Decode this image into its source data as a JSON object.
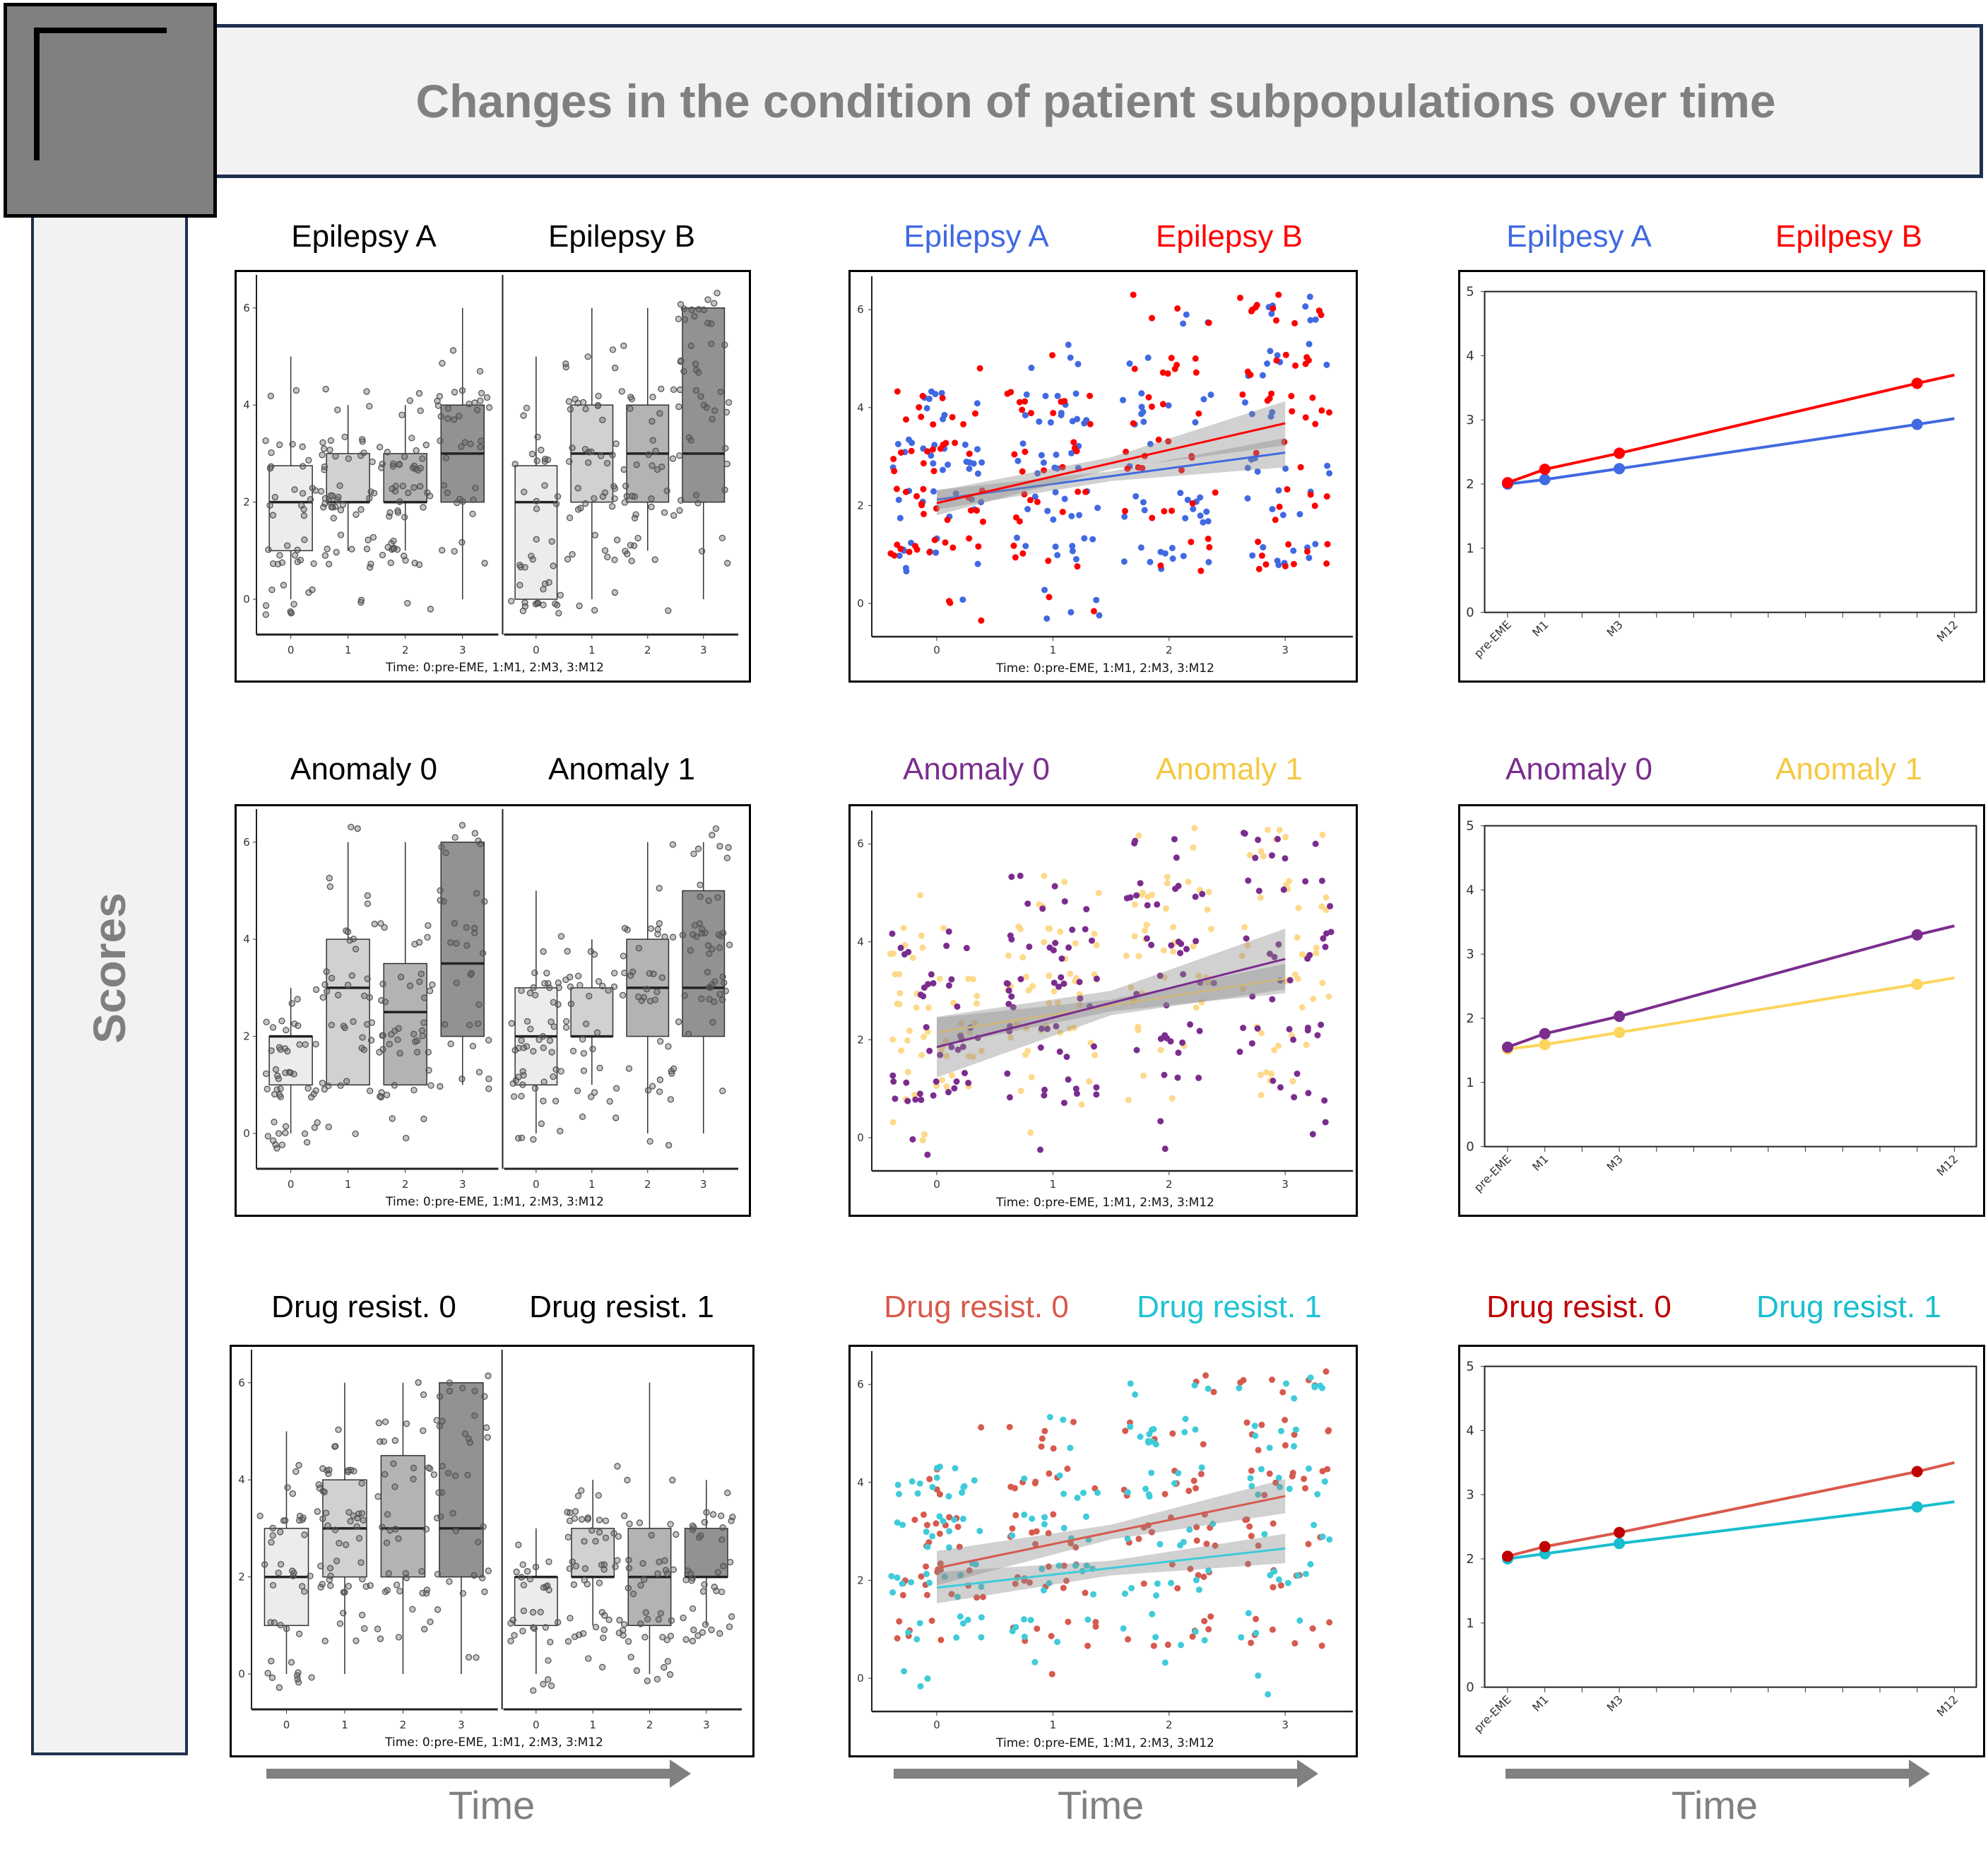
{
  "header": {
    "title": "Changes in the condition of patient subpopulations over time"
  },
  "side_label": "Scores",
  "time_labels": [
    "Time",
    "Time",
    "Time"
  ],
  "colors": {
    "box_fills": [
      "#ececec",
      "#d1d1d1",
      "#b3b3b3",
      "#929292"
    ],
    "title_bar_border": "#1f3050"
  },
  "chart_data": [
    {
      "type": "box",
      "titles": [
        "Epilepsy A",
        "Epilepsy B"
      ],
      "title_colors": [
        "#000000",
        "#000000"
      ],
      "xlabel": "Time: 0:pre-EME, 1:M1, 2:M3, 3:M12",
      "categories": [
        "0",
        "1",
        "2",
        "3"
      ],
      "yticks": [
        0,
        2,
        4,
        6
      ],
      "panels": [
        {
          "name": "Epilepsy A",
          "boxes": [
            [
              0,
              1,
              2,
              2.75,
              5
            ],
            [
              1,
              2,
              2,
              3,
              4
            ],
            [
              1,
              2,
              2,
              3,
              4
            ],
            [
              0,
              2,
              3,
              4,
              6
            ]
          ]
        },
        {
          "name": "Epilepsy B",
          "boxes": [
            [
              0,
              0,
              2,
              2.75,
              5
            ],
            [
              0,
              2,
              3,
              4,
              6
            ],
            [
              1,
              2,
              3,
              4,
              6
            ],
            [
              0,
              2,
              3,
              6,
              6
            ]
          ]
        }
      ]
    },
    {
      "type": "scatter",
      "titles": [
        "Epilepsy A",
        "Epilepsy B"
      ],
      "title_colors": [
        "#4169e1",
        "#ff0000"
      ],
      "xlabel": "Time: 0:pre-EME, 1:M1, 2:M3, 3:M12",
      "xticks": [
        0,
        1,
        2,
        3
      ],
      "yticks": [
        0,
        2,
        4,
        6
      ],
      "series": [
        {
          "name": "Epilepsy A",
          "color": "#4169e1",
          "fit": [
            2.12,
            3.08
          ],
          "ci_halfwidth": [
            0.2,
            0.1,
            0.3
          ]
        },
        {
          "name": "Epilepsy B",
          "color": "#ff0000",
          "fit": [
            2.05,
            3.68
          ],
          "ci_halfwidth": [
            0.25,
            0.12,
            0.45
          ]
        }
      ]
    },
    {
      "type": "line",
      "titles": [
        "Epilpesy A",
        "Epilpesy B"
      ],
      "title_colors": [
        "#4169e1",
        "#ff0000"
      ],
      "xtick_labels": [
        {
          "x": 0,
          "label": "pre-EME"
        },
        {
          "x": 1,
          "label": "M1"
        },
        {
          "x": 3,
          "label": "M3"
        },
        {
          "x": 12,
          "label": "M12"
        }
      ],
      "ylim": [
        0,
        5
      ],
      "yticks": [
        0,
        1,
        2,
        3,
        4,
        5
      ],
      "x": [
        0,
        1,
        3,
        11
      ],
      "series": [
        {
          "name": "Epilpesy A",
          "color": "#4169e1",
          "marker_color": "#4169e1",
          "values": [
            2.0,
            2.07,
            2.24,
            2.93
          ],
          "line_end": 3.02
        },
        {
          "name": "Epilpesy B",
          "color": "#ff0000",
          "marker_color": "#ff0000",
          "values": [
            2.02,
            2.23,
            2.48,
            3.57
          ],
          "line_end": 3.7
        }
      ]
    },
    {
      "type": "box",
      "titles": [
        "Anomaly 0",
        "Anomaly 1"
      ],
      "title_colors": [
        "#000000",
        "#000000"
      ],
      "xlabel": "Time: 0:pre-EME, 1:M1, 2:M3, 3:M12",
      "categories": [
        "0",
        "1",
        "2",
        "3"
      ],
      "yticks": [
        0,
        2,
        4,
        6
      ],
      "panels": [
        {
          "name": "Anomaly 0",
          "boxes": [
            [
              0,
              1,
              2,
              2,
              3
            ],
            [
              1,
              1,
              3,
              4,
              6
            ],
            [
              1,
              1,
              2.5,
              3.5,
              6
            ],
            [
              1,
              2,
              3.5,
              6,
              6
            ]
          ]
        },
        {
          "name": "Anomaly 1",
          "boxes": [
            [
              0,
              1,
              2,
              3,
              5
            ],
            [
              1,
              2,
              2,
              3,
              4
            ],
            [
              0,
              2,
              3,
              4,
              6
            ],
            [
              0,
              2,
              3,
              5,
              6
            ]
          ]
        }
      ]
    },
    {
      "type": "scatter",
      "titles": [
        "Anomaly 0",
        "Anomaly 1"
      ],
      "title_colors": [
        "#7b2d8e",
        "#f5c842"
      ],
      "xlabel": "Time: 0:pre-EME, 1:M1, 2:M3, 3:M12",
      "xticks": [
        0,
        1,
        2,
        3
      ],
      "yticks": [
        0,
        2,
        4,
        6
      ],
      "series": [
        {
          "name": "Anomaly 1",
          "color": "#fdd98a",
          "line_color": "#f7d37a",
          "fit": [
            2.15,
            3.25
          ],
          "ci_halfwidth": [
            0.3,
            0.12,
            0.3
          ]
        },
        {
          "name": "Anomaly 0",
          "color": "#7b2d8e",
          "line_color": "#7b2d8e",
          "fit": [
            1.85,
            3.65
          ],
          "ci_halfwidth": [
            0.62,
            0.25,
            0.62
          ]
        }
      ]
    },
    {
      "type": "line",
      "titles": [
        "Anomaly 0",
        "Anomaly 1"
      ],
      "title_colors": [
        "#7b2d8e",
        "#f5c842"
      ],
      "xtick_labels": [
        {
          "x": 0,
          "label": "pre-EME"
        },
        {
          "x": 1,
          "label": "M1"
        },
        {
          "x": 3,
          "label": "M3"
        },
        {
          "x": 12,
          "label": "M12"
        }
      ],
      "ylim": [
        0,
        5
      ],
      "yticks": [
        0,
        1,
        2,
        3,
        4,
        5
      ],
      "x": [
        0,
        1,
        3,
        11
      ],
      "series": [
        {
          "name": "Anomaly 1",
          "color": "#fdd55c",
          "marker_color": "#fdd55c",
          "values": [
            1.52,
            1.59,
            1.78,
            2.53
          ],
          "line_end": 2.63
        },
        {
          "name": "Anomaly 0",
          "color": "#7b2d8e",
          "marker_color": "#7b2d8e",
          "values": [
            1.55,
            1.76,
            2.03,
            3.3
          ],
          "line_end": 3.44
        }
      ]
    },
    {
      "type": "box",
      "titles": [
        "Drug resist. 0",
        "Drug resist. 1"
      ],
      "title_colors": [
        "#000000",
        "#000000"
      ],
      "xlabel": "Time: 0:pre-EME, 1:M1, 2:M3, 3:M12",
      "categories": [
        "0",
        "1",
        "2",
        "3"
      ],
      "yticks": [
        0,
        2,
        4,
        6
      ],
      "panels": [
        {
          "name": "Drug resist. 0",
          "boxes": [
            [
              0,
              1,
              2,
              3,
              5
            ],
            [
              0,
              2,
              3,
              4,
              6
            ],
            [
              0,
              2,
              3,
              4.5,
              6
            ],
            [
              0,
              2,
              3,
              6,
              6
            ]
          ]
        },
        {
          "name": "Drug resist. 1",
          "boxes": [
            [
              0,
              1,
              2,
              2,
              3
            ],
            [
              1,
              2,
              2,
              3,
              4
            ],
            [
              0,
              1,
              2,
              3,
              6
            ],
            [
              1,
              2,
              2,
              3,
              4
            ]
          ]
        }
      ]
    },
    {
      "type": "scatter",
      "titles": [
        "Drug resist. 0",
        "Drug resist. 1"
      ],
      "title_colors": [
        "#d9594c",
        "#1ec3d6"
      ],
      "xlabel": "Time: 0:pre-EME, 1:M1, 2:M3, 3:M12",
      "xticks": [
        0,
        1,
        2,
        3
      ],
      "yticks": [
        0,
        2,
        4,
        6
      ],
      "series": [
        {
          "name": "Drug resist. 0",
          "color": "#d65a4e",
          "line_color": "#d65a4e",
          "fit": [
            2.25,
            3.72
          ],
          "ci_halfwidth": [
            0.35,
            0.15,
            0.35
          ]
        },
        {
          "name": "Drug resist. 1",
          "color": "#3fcbd9",
          "line_color": "#3fcbd9",
          "fit": [
            1.85,
            2.65
          ],
          "ci_halfwidth": [
            0.32,
            0.15,
            0.3
          ]
        }
      ]
    },
    {
      "type": "line",
      "titles": [
        "Drug resist. 0",
        "Drug resist. 1"
      ],
      "title_colors": [
        "#c00000",
        "#17becf"
      ],
      "xtick_labels": [
        {
          "x": 0,
          "label": "pre-EME"
        },
        {
          "x": 1,
          "label": "M1"
        },
        {
          "x": 3,
          "label": "M3"
        },
        {
          "x": 12,
          "label": "M12"
        }
      ],
      "ylim": [
        0,
        5
      ],
      "yticks": [
        0,
        1,
        2,
        3,
        4,
        5
      ],
      "x": [
        0,
        1,
        3,
        11
      ],
      "series": [
        {
          "name": "Drug resist. 1",
          "color": "#17becf",
          "marker_color": "#17becf",
          "values": [
            2.0,
            2.08,
            2.24,
            2.81
          ],
          "line_end": 2.89
        },
        {
          "name": "Drug resist. 0",
          "color": "#d9594c",
          "marker_color": "#c00000",
          "values": [
            2.04,
            2.19,
            2.41,
            3.36
          ],
          "line_end": 3.5
        }
      ]
    }
  ]
}
